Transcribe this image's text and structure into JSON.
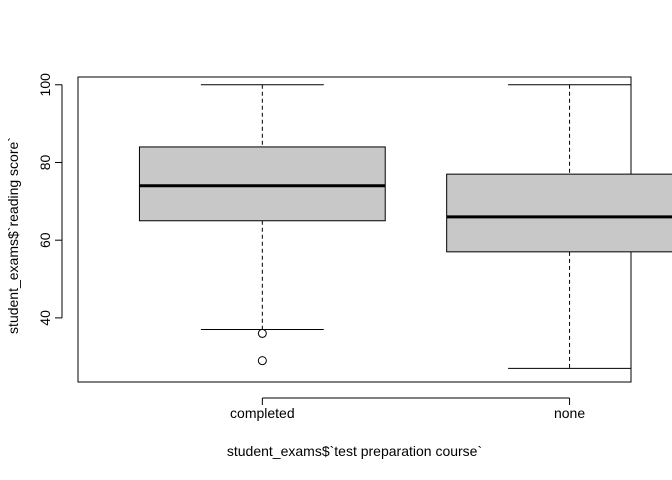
{
  "chart_data": {
    "type": "boxplot",
    "title": "",
    "xlabel": "student_exams$`test preparation course`",
    "ylabel": "student_exams$`reading score`",
    "ylim": [
      23.5,
      102
    ],
    "yticks": [
      40,
      60,
      80,
      100
    ],
    "categories": [
      "completed",
      "none"
    ],
    "boxes": [
      {
        "category": "completed",
        "whisker_low": 37,
        "q1": 65,
        "median": 74,
        "q3": 84,
        "whisker_high": 100,
        "outliers": [
          36,
          29
        ]
      },
      {
        "category": "none",
        "whisker_low": 27,
        "q1": 57,
        "median": 66,
        "q3": 77,
        "whisker_high": 100,
        "outliers": []
      }
    ],
    "box_fill": "#c8c8c8",
    "grid": false,
    "legend": "none"
  }
}
